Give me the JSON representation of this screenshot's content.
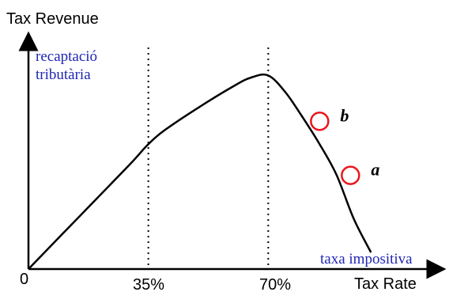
{
  "chart_data": {
    "type": "line",
    "ylabel": "Tax Revenue",
    "xlabel": "Tax Rate",
    "ylabel_secondary": "recaptació tributària",
    "ylabel_secondary_lines": [
      "recaptació",
      "tributària"
    ],
    "xlabel_secondary": "taxa impositiva",
    "origin_label": "0",
    "x_ticks": [
      {
        "value": 35,
        "label": "35%"
      },
      {
        "value": 70,
        "label": "70%"
      }
    ],
    "series": [
      {
        "x": [
          0,
          10,
          20,
          30,
          35,
          40,
          50,
          60,
          65,
          70,
          75,
          80,
          85,
          90,
          95,
          100
        ],
        "y": [
          0,
          17,
          34,
          51,
          60,
          67,
          78,
          88,
          92,
          93,
          85,
          73,
          60,
          45,
          24,
          8
        ]
      }
    ],
    "points": [
      {
        "label": "b",
        "x": 85,
        "y": 71
      },
      {
        "label": "a",
        "x": 94,
        "y": 45
      }
    ],
    "xlim": [
      0,
      102
    ],
    "ylim": [
      0,
      100
    ],
    "grid": false,
    "colors": {
      "curve": "#000000",
      "guide": "#000000",
      "point_ring": "#e8161b",
      "secondary_label": "#1f26b4"
    }
  }
}
